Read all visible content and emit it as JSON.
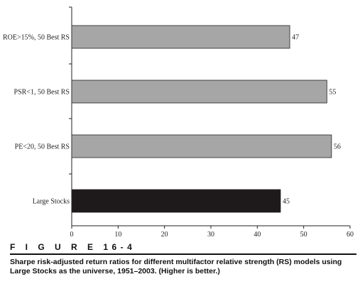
{
  "chart_data": {
    "type": "bar",
    "orientation": "horizontal",
    "categories": [
      "ROE>15%, 50 Best RS",
      "PSR<1, 50 Best RS",
      "PE<20, 50 Best RS",
      "Large Stocks"
    ],
    "values": [
      47,
      55,
      56,
      45
    ],
    "value_labels": [
      "47",
      "55",
      "56",
      "45"
    ],
    "colors": [
      "#a6a6a6",
      "#a6a6a6",
      "#a6a6a6",
      "#1e1a1b"
    ],
    "xlim": [
      0,
      60
    ],
    "xticks": [
      "0",
      "10",
      "20",
      "30",
      "40",
      "50",
      "60"
    ],
    "grid": false,
    "legend": "none"
  },
  "figure": {
    "label": "F I G U R E  16-4",
    "caption": "Sharpe risk-adjusted return ratios for different multifactor relative strength (RS) models using Large Stocks as the universe, 1951–2003. (Higher is better.)"
  }
}
